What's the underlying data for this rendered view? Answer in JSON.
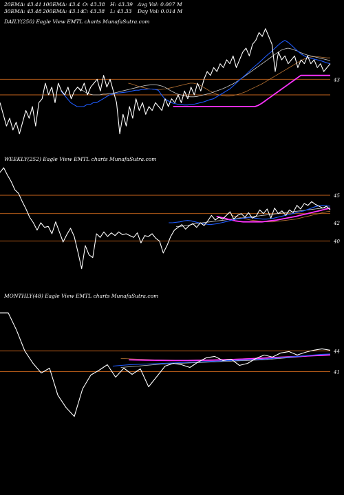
{
  "header": {
    "row1": [
      "20EMA: 43.41",
      "100EMA: 43.4",
      "O: 43.38",
      "H: 43.39",
      "Avg Vol: 0.007 M"
    ],
    "row2": [
      "30EMA: 43.48",
      "200EMA: 43.14",
      "C: 43.38",
      "L: 43.33",
      "Day Vol: 0.014  M"
    ]
  },
  "colors": {
    "price": "#ffffff",
    "ema_short": "#1f5cff",
    "ema_mid": "#cccccc",
    "ema_long": "#b87333",
    "trend": "#ff33ff",
    "level": "#c8651b"
  },
  "chart_data": [
    {
      "type": "line",
      "title": "DAILY(250) Eagle  View  EMTL  charts MunafaSutra.com",
      "y_tick_labels": [
        {
          "value": 43,
          "label": "43"
        }
      ],
      "level_lines": [
        43,
        42.6
      ],
      "ylim": [
        41.4,
        44.4
      ],
      "series": [
        {
          "key": "price",
          "values": [
            42.4,
            42.1,
            41.8,
            42.0,
            41.7,
            41.9,
            41.6,
            41.9,
            42.2,
            42.0,
            42.3,
            41.8,
            42.4,
            42.5,
            42.9,
            42.6,
            42.8,
            42.4,
            42.9,
            42.7,
            42.6,
            42.8,
            42.5,
            42.7,
            42.8,
            42.7,
            42.9,
            42.6,
            42.8,
            42.9,
            43.0,
            42.7,
            43.1,
            42.8,
            43.0,
            42.7,
            42.4,
            41.6,
            42.1,
            41.8,
            42.3,
            42.0,
            42.5,
            42.2,
            42.4,
            42.1,
            42.3,
            42.2,
            42.4,
            42.3,
            42.2,
            42.5,
            42.3,
            42.5,
            42.4,
            42.6,
            42.4,
            42.7,
            42.5,
            42.8,
            42.6,
            42.9,
            42.7,
            43.0,
            43.2,
            43.1,
            43.3,
            43.2,
            43.4,
            43.3,
            43.5,
            43.4,
            43.6,
            43.3,
            43.5,
            43.7,
            43.8,
            43.6,
            43.9,
            44.0,
            44.2,
            44.1,
            44.3,
            44.1,
            43.9,
            43.2,
            43.7,
            43.5,
            43.6,
            43.4,
            43.5,
            43.6,
            43.3,
            43.5,
            43.4,
            43.6,
            43.4,
            43.5,
            43.3,
            43.4,
            43.2,
            43.3,
            43.4
          ]
        },
        {
          "key": "ema_short",
          "values": [
            42.7,
            42.6,
            42.5,
            42.4,
            42.35,
            42.3,
            42.3,
            42.3,
            42.35,
            42.35,
            42.4,
            42.4,
            42.45,
            42.5,
            42.55,
            42.6,
            42.62,
            42.64,
            42.65,
            42.66,
            42.67,
            42.68,
            42.7,
            42.72,
            42.72,
            42.74,
            42.74,
            42.75,
            42.75,
            42.74,
            42.72,
            42.6,
            42.5,
            42.45,
            42.4,
            42.38,
            42.36,
            42.35,
            42.34,
            42.34,
            42.35,
            42.36,
            42.38,
            42.4,
            42.42,
            42.45,
            42.48,
            42.5,
            42.55,
            42.6,
            42.65,
            42.7,
            42.75,
            42.82,
            42.9,
            42.98,
            43.05,
            43.12,
            43.2,
            43.28,
            43.35,
            43.42,
            43.5,
            43.58,
            43.65,
            43.72,
            43.8,
            43.88,
            43.95,
            44.0,
            43.95,
            43.88,
            43.8,
            43.72,
            43.65,
            43.6,
            43.56,
            43.54,
            43.52,
            43.5,
            43.48,
            43.45,
            43.42,
            43.4
          ]
        },
        {
          "key": "ema_mid",
          "values": [
            42.8,
            42.75,
            42.7,
            42.65,
            42.62,
            42.6,
            42.6,
            42.6,
            42.62,
            42.62,
            42.64,
            42.64,
            42.66,
            42.68,
            42.7,
            42.72,
            42.74,
            42.76,
            42.78,
            42.8,
            42.82,
            42.84,
            42.85,
            42.86,
            42.86,
            42.85,
            42.83,
            42.8,
            42.75,
            42.7,
            42.66,
            42.62,
            42.6,
            42.58,
            42.56,
            42.55,
            42.55,
            42.56,
            42.58,
            42.6,
            42.62,
            42.64,
            42.67,
            42.7,
            42.73,
            42.76,
            42.8,
            42.84,
            42.88,
            42.93,
            42.98,
            43.04,
            43.1,
            43.16,
            43.22,
            43.28,
            43.34,
            43.4,
            43.46,
            43.52,
            43.58,
            43.64,
            43.7,
            43.75,
            43.78,
            43.8,
            43.78,
            43.75,
            43.72,
            43.68,
            43.65,
            43.62,
            43.6,
            43.58,
            43.56,
            43.54,
            43.52,
            43.5,
            43.48
          ]
        },
        {
          "key": "ema_long",
          "values": [
            42.9,
            42.88,
            42.85,
            42.82,
            42.8,
            42.78,
            42.76,
            42.75,
            42.74,
            42.74,
            42.74,
            42.75,
            42.76,
            42.78,
            42.8,
            42.82,
            42.84,
            42.86,
            42.88,
            42.9,
            42.9,
            42.88,
            42.85,
            42.8,
            42.75,
            42.7,
            42.66,
            42.62,
            42.6,
            42.58,
            42.57,
            42.57,
            42.58,
            42.6,
            42.62,
            42.65,
            42.68,
            42.72,
            42.76,
            42.8,
            42.84,
            42.88,
            42.93,
            42.98,
            43.03,
            43.08,
            43.13,
            43.18,
            43.23,
            43.28,
            43.33,
            43.38,
            43.43,
            43.48,
            43.52,
            43.55,
            43.57,
            43.58,
            43.58,
            43.57,
            43.56,
            43.55,
            43.55
          ]
        },
        {
          "key": "trend",
          "values": [
            42.3,
            42.3,
            42.3,
            42.3,
            42.3,
            42.3,
            42.3,
            42.3,
            42.3,
            42.3,
            42.3,
            42.3,
            42.3,
            42.3,
            42.3,
            42.3,
            42.3,
            42.3,
            42.3,
            42.3,
            42.3,
            42.3,
            42.3,
            42.3,
            42.3,
            42.3,
            42.33,
            42.38,
            42.44,
            42.5,
            42.56,
            42.62,
            42.68,
            42.74,
            42.8,
            42.86,
            42.92,
            42.98,
            43.04,
            43.1,
            43.1,
            43.1,
            43.1,
            43.1,
            43.1,
            43.1,
            43.1,
            43.1,
            43.1
          ]
        }
      ]
    },
    {
      "type": "line",
      "title": "WEEKLY(252) Eagle  View  EMTL  charts MunafaSutra.com",
      "y_tick_labels": [
        {
          "value": 45,
          "label": "45"
        },
        {
          "value": 42,
          "label": "42"
        },
        {
          "value": 40,
          "label": "40"
        }
      ],
      "level_lines": [
        45,
        43,
        40
      ],
      "ylim": [
        34.8,
        48.6
      ],
      "series": [
        {
          "key": "price",
          "values": [
            47.5,
            48.0,
            47.2,
            46.5,
            45.6,
            45.2,
            44.3,
            43.5,
            42.6,
            42.0,
            41.2,
            42.0,
            41.5,
            41.6,
            40.8,
            42.1,
            41.0,
            39.9,
            40.7,
            41.4,
            40.5,
            38.8,
            37.0,
            39.5,
            38.5,
            38.2,
            40.8,
            40.4,
            41.0,
            40.5,
            40.9,
            40.6,
            41.0,
            40.7,
            40.8,
            40.6,
            40.4,
            40.9,
            39.8,
            40.6,
            40.5,
            40.8,
            40.3,
            40.0,
            38.7,
            39.5,
            40.5,
            41.2,
            41.5,
            41.8,
            41.3,
            41.7,
            41.9,
            41.5,
            42.0,
            41.7,
            42.2,
            42.8,
            42.3,
            42.6,
            42.4,
            42.8,
            43.2,
            42.4,
            42.8,
            43.0,
            42.6,
            43.1,
            42.5,
            42.7,
            43.4,
            43.0,
            43.5,
            42.5,
            43.6,
            43.0,
            43.3,
            42.8,
            43.4,
            43.1,
            43.9,
            43.5,
            44.1,
            43.9,
            44.3,
            44.0,
            43.8,
            43.6,
            43.8,
            43.4
          ]
        },
        {
          "key": "ema_short",
          "values": [
            42.0,
            42.0,
            42.05,
            42.1,
            42.2,
            42.25,
            42.2,
            42.1,
            42.0,
            41.9,
            41.85,
            41.8,
            41.85,
            41.9,
            42.0,
            42.1,
            42.2,
            42.3,
            42.4,
            42.45,
            42.5,
            42.55,
            42.55,
            42.5,
            42.45,
            42.4,
            42.4,
            42.45,
            42.5,
            42.6,
            42.7,
            42.8,
            42.9,
            43.0,
            43.1,
            43.2,
            43.3,
            43.45,
            43.6,
            43.75,
            43.85,
            43.9,
            43.85,
            43.8
          ]
        },
        {
          "key": "ema_mid",
          "values": [
            41.6,
            41.6,
            41.65,
            41.7,
            41.8,
            41.9,
            41.95,
            42.0,
            42.05,
            42.1,
            42.15,
            42.2,
            42.25,
            42.3,
            42.35,
            42.4,
            42.45,
            42.5,
            42.55,
            42.6,
            42.65,
            42.7,
            42.75,
            42.8,
            42.85,
            42.9,
            42.95,
            43.0,
            43.05,
            43.1,
            43.15,
            43.2,
            43.25,
            43.3,
            43.35,
            43.4,
            43.45,
            43.5,
            43.55,
            43.6,
            43.62,
            43.63
          ]
        },
        {
          "key": "ema_long",
          "values": [
            42.8,
            42.7,
            42.6,
            42.5,
            42.4,
            42.3,
            42.25,
            42.2,
            42.15,
            42.1,
            42.1,
            42.1,
            42.15,
            42.2,
            42.25,
            42.3,
            42.35,
            42.4,
            42.5,
            42.6,
            42.7,
            42.8,
            42.9,
            43.0,
            43.1,
            43.2,
            43.25
          ]
        },
        {
          "key": "trend",
          "values": [
            42.7,
            42.6,
            42.5,
            42.4,
            42.3,
            42.2,
            42.15,
            42.1,
            42.1,
            42.1,
            42.1,
            42.1,
            42.1,
            42.15,
            42.2,
            42.25,
            42.3,
            42.38,
            42.46,
            42.54,
            42.62,
            42.7,
            42.8,
            42.9,
            43.0,
            43.1,
            43.2,
            43.3,
            43.4,
            43.5,
            43.6
          ]
        }
      ]
    },
    {
      "type": "line",
      "title": "MONTHLY(48) Eagle  View  EMTL  charts MunafaSutra.com",
      "y_tick_labels": [
        {
          "value": 44,
          "label": "44"
        },
        {
          "value": 41,
          "label": "41"
        }
      ],
      "level_lines": [
        44,
        41
      ],
      "ylim": [
        31.5,
        51.4
      ],
      "series": [
        {
          "key": "price",
          "values": [
            49.5,
            49.5,
            47.0,
            44.0,
            42.2,
            40.8,
            41.5,
            37.6,
            35.8,
            34.5,
            38.5,
            40.5,
            41.2,
            42.0,
            40.2,
            41.5,
            40.6,
            41.4,
            38.8,
            40.3,
            41.8,
            42.2,
            42.0,
            41.6,
            42.4,
            43.0,
            43.2,
            42.6,
            42.8,
            41.9,
            42.2,
            42.9,
            43.4,
            43.1,
            43.7,
            43.9,
            43.4,
            43.8,
            44.1,
            44.3,
            44.1
          ]
        },
        {
          "key": "ema_short",
          "values": [
            41.8,
            41.9,
            42.0,
            42.05,
            42.1,
            42.15,
            42.2,
            42.25,
            42.3,
            42.35,
            42.4,
            42.45,
            42.5,
            42.55,
            42.6,
            42.65,
            42.7,
            42.75,
            42.8,
            42.9,
            43.0,
            43.1,
            43.2,
            43.3,
            43.4,
            43.5,
            43.55
          ]
        },
        {
          "key": "ema_mid",
          "values": [
            41.6,
            41.7,
            41.8,
            41.9,
            42.0,
            42.1,
            42.15,
            42.2,
            42.25,
            42.3,
            42.35,
            42.4,
            42.45,
            42.5,
            42.55,
            42.6,
            42.65,
            42.7,
            42.8,
            42.9,
            43.0,
            43.1,
            43.2,
            43.3,
            43.4,
            43.5
          ]
        },
        {
          "key": "ema_long",
          "values": [
            42.9,
            42.85,
            42.8,
            42.75,
            42.7,
            42.68,
            42.66,
            42.65,
            42.65,
            42.66,
            42.68,
            42.7,
            42.74,
            42.78,
            42.83,
            42.88,
            42.94,
            43.0,
            43.06,
            43.12,
            43.18,
            43.24,
            43.3,
            43.36,
            43.42,
            43.48
          ]
        },
        {
          "key": "trend",
          "values": [
            42.7,
            42.68,
            42.66,
            42.64,
            42.62,
            42.6,
            42.6,
            42.6,
            42.62,
            42.64,
            42.66,
            42.7,
            42.74,
            42.78,
            42.83,
            42.88,
            42.94,
            43.0,
            43.06,
            43.12,
            43.18,
            43.24,
            43.3,
            43.36,
            43.42
          ]
        }
      ]
    }
  ]
}
